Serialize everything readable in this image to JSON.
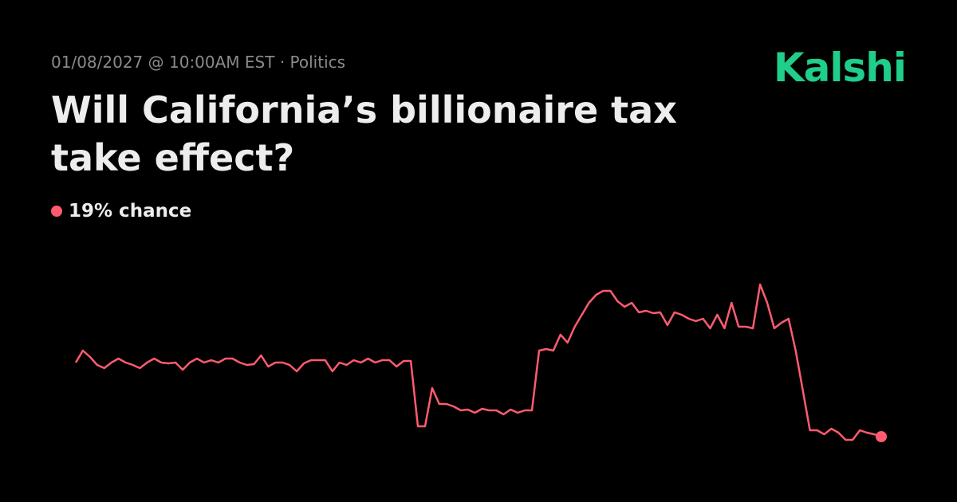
{
  "chart_data": {
    "type": "line",
    "subtitle": "01/08/2027 @ 10:00AM EST · Politics",
    "title": "Will California’s billionaire tax take effect?",
    "brand": "Kalshi",
    "current_label": "19% chance",
    "color": "#ff5b6f",
    "values": [
      28.3,
      29.8,
      29.0,
      28.0,
      27.6,
      28.3,
      28.8,
      28.3,
      28.0,
      27.6,
      28.3,
      28.8,
      28.3,
      28.2,
      28.3,
      27.4,
      28.3,
      28.8,
      28.3,
      28.6,
      28.3,
      28.8,
      28.8,
      28.3,
      28.0,
      28.1,
      29.2,
      27.8,
      28.3,
      28.3,
      28.0,
      27.2,
      28.2,
      28.6,
      28.6,
      28.6,
      27.2,
      28.3,
      28.0,
      28.6,
      28.3,
      28.8,
      28.3,
      28.6,
      28.6,
      27.8,
      28.5,
      28.5,
      20.3,
      20.3,
      25.1,
      23.1,
      23.1,
      22.8,
      22.3,
      22.4,
      22.0,
      22.5,
      22.3,
      22.3,
      21.8,
      22.4,
      22.0,
      22.3,
      22.3,
      29.8,
      30.0,
      29.8,
      31.8,
      30.8,
      32.8,
      34.3,
      35.8,
      36.8,
      37.3,
      37.3,
      36.0,
      35.3,
      35.8,
      34.6,
      34.8,
      34.5,
      34.6,
      33.0,
      34.6,
      34.3,
      33.8,
      33.5,
      33.8,
      32.6,
      34.3,
      32.6,
      35.8,
      32.8,
      32.8,
      32.6,
      38.1,
      35.8,
      32.6,
      33.3,
      33.8,
      29.8,
      24.8,
      19.8,
      19.8,
      19.3,
      20.0,
      19.5,
      18.6,
      18.6,
      19.8,
      19.5,
      19.3,
      19
    ]
  }
}
